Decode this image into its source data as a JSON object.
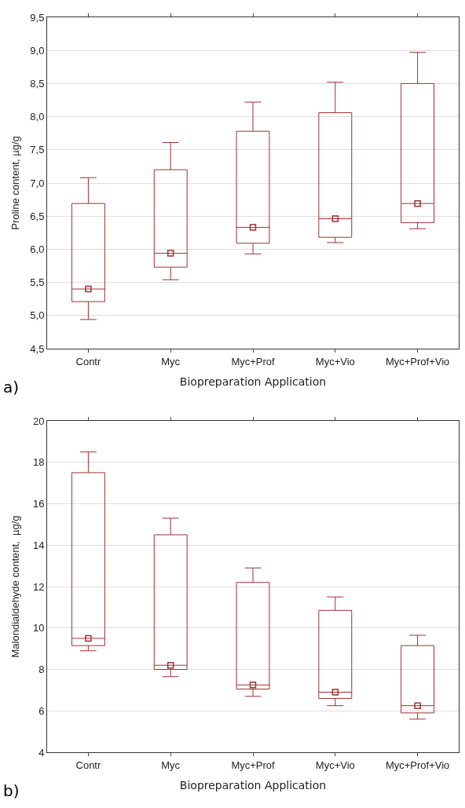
{
  "chart_data": [
    {
      "type": "box",
      "categories": [
        "Contr",
        "Myc",
        "Myc+Prof",
        "Myc+Vio",
        "Myc+Prof+Vio"
      ],
      "xlabel": "Biopreparation Application",
      "ylabel": "Proline content, µg/g",
      "color": "#a03030",
      "marker": "square",
      "grid": "y",
      "ylim": [
        4.5,
        9.5
      ],
      "yticks": [
        {
          "value": 4.5,
          "label": "4,5"
        },
        {
          "value": 5,
          "label": "5,0"
        },
        {
          "value": 5.5,
          "label": "5,5"
        },
        {
          "value": 6,
          "label": "6,0"
        },
        {
          "value": 6.5,
          "label": "6,5"
        },
        {
          "value": 7,
          "label": "7,0"
        },
        {
          "value": 7.5,
          "label": "7,5"
        },
        {
          "value": 8,
          "label": "8,0"
        },
        {
          "value": 8.5,
          "label": "8,5"
        },
        {
          "value": 9,
          "label": "9,0"
        },
        {
          "value": 9.5,
          "label": "9,5"
        }
      ],
      "boxes": [
        {
          "low": 4.94,
          "q1": 5.21,
          "median": 5.4,
          "q3": 6.69,
          "high": 7.08
        },
        {
          "low": 5.54,
          "q1": 5.73,
          "median": 5.94,
          "q3": 7.2,
          "high": 7.61
        },
        {
          "low": 5.93,
          "q1": 6.09,
          "median": 6.33,
          "q3": 7.78,
          "high": 8.22
        },
        {
          "low": 6.1,
          "q1": 6.18,
          "median": 6.46,
          "q3": 8.06,
          "high": 8.52
        },
        {
          "low": 6.31,
          "q1": 6.4,
          "median": 6.69,
          "q3": 8.5,
          "high": 8.97
        }
      ],
      "series": [
        {
          "type": "scatter",
          "color": "#a03030",
          "x": [
            "Contr",
            "Myc",
            "Myc+Prof",
            "Myc+Vio",
            "Myc+Prof+Vio"
          ],
          "values": [
            5.4,
            5.94,
            6.33,
            6.46,
            6.69
          ]
        }
      ],
      "annotations": [
        "a)"
      ]
    },
    {
      "type": "box",
      "categories": [
        "Contr",
        "Myc",
        "Myc+Prof",
        "Myc+Vio",
        "Myc+Prof+Vio"
      ],
      "xlabel": "Biopreparation Application",
      "ylabel": "Malondialdehyde content,  µg/g",
      "color": "#a03030",
      "marker": "square",
      "grid": "y",
      "ylim": [
        4,
        20
      ],
      "yticks": [
        4,
        6,
        8,
        10,
        12,
        14,
        16,
        18,
        20
      ],
      "boxes": [
        {
          "low": 8.9,
          "q1": 9.15,
          "median": 9.5,
          "q3": 17.5,
          "high": 18.5
        },
        {
          "low": 7.65,
          "q1": 8.0,
          "median": 8.2,
          "q3": 14.5,
          "high": 15.3
        },
        {
          "low": 6.7,
          "q1": 7.05,
          "median": 7.25,
          "q3": 12.2,
          "high": 12.9
        },
        {
          "low": 6.25,
          "q1": 6.6,
          "median": 6.9,
          "q3": 10.85,
          "high": 11.5
        },
        {
          "low": 5.6,
          "q1": 5.9,
          "median": 6.25,
          "q3": 9.15,
          "high": 9.65
        }
      ],
      "series": [
        {
          "type": "scatter",
          "color": "#a03030",
          "x": [
            "Contr",
            "Myc",
            "Myc+Prof",
            "Myc+Vio",
            "Myc+Prof+Vio"
          ],
          "values": [
            9.5,
            8.2,
            7.25,
            6.9,
            6.25
          ]
        }
      ],
      "annotations": [
        "b)"
      ]
    }
  ]
}
